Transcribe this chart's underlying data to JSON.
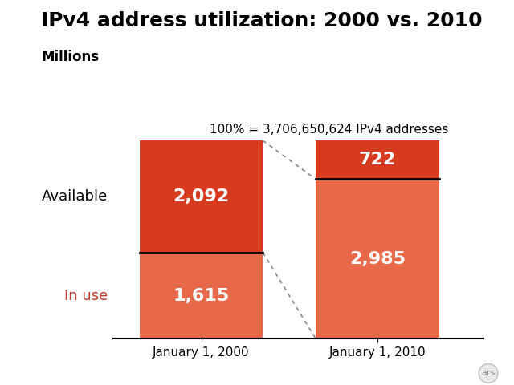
{
  "title": "IPv4 address utilization: 2000 vs. 2010",
  "subtitle": "Millions",
  "annotation": "100% = 3,706,650,624 IPv4 addresses",
  "categories": [
    "January 1, 2000",
    "January 1, 2010"
  ],
  "in_use": [
    1615,
    2985
  ],
  "available": [
    2092,
    722
  ],
  "color_dark_red": "#D63B1F",
  "color_light_red": "#E8694A",
  "label_in_use": "In use",
  "label_available": "Available",
  "label_in_use_color": "#C0392B",
  "label_available_color": "#000000",
  "background_color": "#FFFFFF",
  "value_fontsize": 16,
  "title_fontsize": 18,
  "subtitle_fontsize": 12,
  "annotation_fontsize": 11,
  "axis_label_fontsize": 13,
  "tick_fontsize": 11
}
